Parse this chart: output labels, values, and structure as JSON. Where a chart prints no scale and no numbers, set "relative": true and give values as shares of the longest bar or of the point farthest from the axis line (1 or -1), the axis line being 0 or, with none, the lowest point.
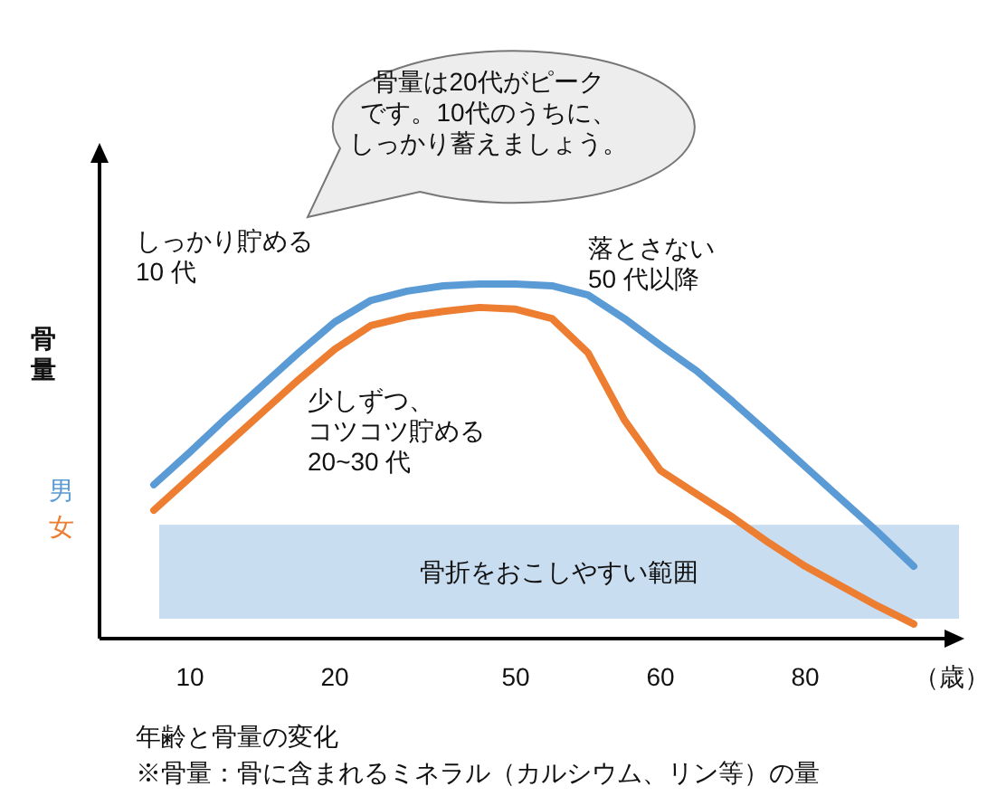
{
  "chart_data": {
    "type": "line",
    "relative": true,
    "ylabel": "骨量",
    "xlabel": "（歳）",
    "categories": [
      null,
      "10",
      null,
      null,
      null,
      "20",
      null,
      null,
      null,
      null,
      "50",
      null,
      null,
      null,
      "60",
      null,
      null,
      null,
      "80",
      null,
      null,
      null
    ],
    "series": [
      {
        "name": "男",
        "color": "#5b9bd5",
        "values": [
          0.434,
          0.526,
          0.622,
          0.714,
          0.806,
          0.893,
          0.954,
          0.98,
          0.995,
          1,
          1,
          0.995,
          0.969,
          0.903,
          0.827,
          0.755,
          0.668,
          0.577,
          0.485,
          0.393,
          0.301,
          0.204
        ]
      },
      {
        "name": "女",
        "color": "#ed7d31",
        "values": [
          0.362,
          0.454,
          0.546,
          0.638,
          0.73,
          0.816,
          0.883,
          0.908,
          0.923,
          0.934,
          0.929,
          0.903,
          0.806,
          0.617,
          0.474,
          0.408,
          0.342,
          0.27,
          0.204,
          0.148,
          0.092,
          0.041
        ]
      }
    ],
    "bands": [
      {
        "axis": "y",
        "from": 0.056,
        "to": 0.321,
        "label": "骨折をおこしやすい範囲",
        "color": "#c9ddf1"
      }
    ],
    "annotations": [
      "骨量は20代がピークです。10代のうちに、しっかり蓄えましょう。",
      "しっかり貯める10 代",
      "落とさない50 代以降",
      "少しずつ、コツコツ貯める20~30 代",
      "年齢と骨量の変化",
      "※骨量：骨に含まれるミネラル（カルシウム、リン等）の量"
    ]
  }
}
